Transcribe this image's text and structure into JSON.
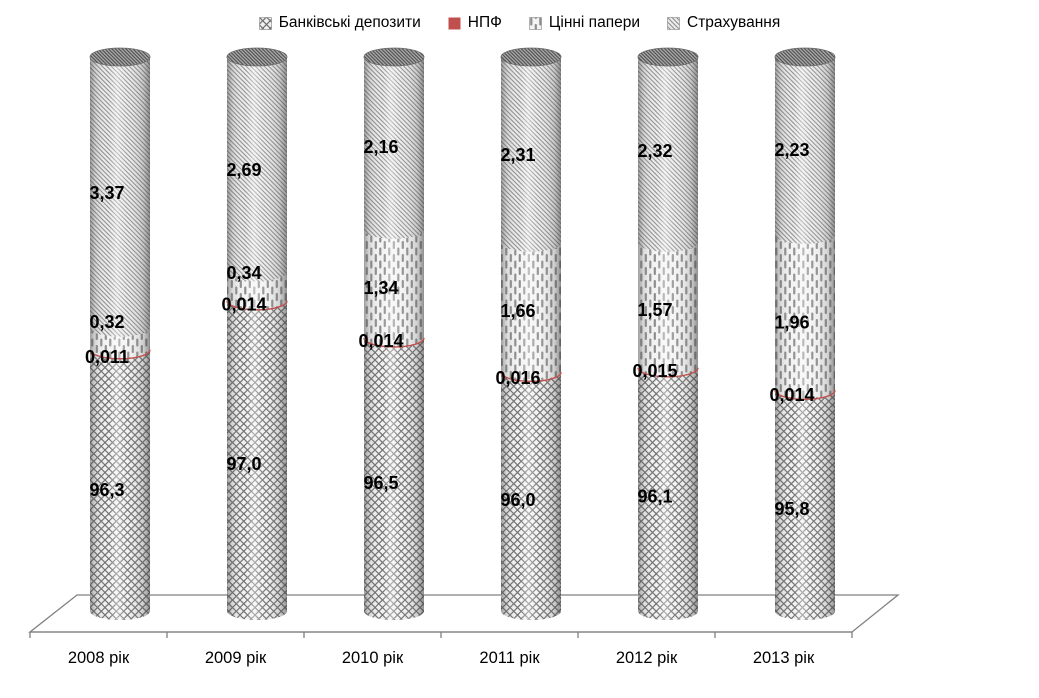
{
  "chart": {
    "colors": {
      "npf_red": "#C0504D",
      "axis_gray": "#808080",
      "label_black": "#000000"
    },
    "legend": [
      {
        "pattern": "crosshatch"
      },
      {
        "pattern": "solid-red"
      },
      {
        "pattern": "vertical-dashes"
      },
      {
        "pattern": "diagonal-lines"
      }
    ]
  },
  "chart_data": {
    "type": "bar",
    "subtype": "3d-stacked-cylinder-100pct",
    "title": "",
    "xlabel": "",
    "ylabel": "",
    "legend_position": "top",
    "grid": false,
    "y_axis_visible": false,
    "categories": [
      "2008 рік",
      "2009 рік",
      "2010 рік",
      "2011 рік",
      "2012 рік",
      "2013 рік"
    ],
    "series": [
      {
        "name": "Банківські депозити",
        "values": [
          96.3,
          97.0,
          96.5,
          96.0,
          96.1,
          95.8
        ],
        "labels": [
          "96,3",
          "97,0",
          "96,5",
          "96,0",
          "96,1",
          "95,8"
        ]
      },
      {
        "name": "НПФ",
        "values": [
          0.011,
          0.014,
          0.014,
          0.016,
          0.015,
          0.014
        ],
        "labels": [
          "0,011",
          "0,014",
          "0,014",
          "0,016",
          "0,015",
          "0,014"
        ]
      },
      {
        "name": "Цінні папери",
        "values": [
          0.32,
          0.34,
          1.34,
          1.66,
          1.57,
          1.96
        ],
        "labels": [
          "0,32",
          "0,34",
          "1,34",
          "1,66",
          "1,57",
          "1,96"
        ]
      },
      {
        "name": "Страхування",
        "values": [
          3.37,
          2.69,
          2.16,
          2.31,
          2.32,
          2.23
        ],
        "labels": [
          "3,37",
          "2,69",
          "2,16",
          "2,31",
          "2,32",
          "2,23"
        ]
      }
    ],
    "layout_hints": {
      "note": "non-linear visual scale; fractions of cylinder body height (0=top,1=bottom)",
      "seg_boundaries": [
        [
          0.481,
          0.52
        ],
        [
          0.382,
          0.433
        ],
        [
          0.307,
          0.499
        ],
        [
          0.33,
          0.56
        ],
        [
          0.33,
          0.552
        ],
        [
          0.316,
          0.592
        ]
      ],
      "label_fracs": [
        {
          "insurance": 0.242,
          "securities": 0.471,
          "npf": 0.533,
          "deposits": 0.769
        },
        {
          "insurance": 0.201,
          "securities": 0.384,
          "npf": 0.44,
          "deposits": 0.723
        },
        {
          "insurance": 0.16,
          "securities": 0.41,
          "npf": 0.504,
          "deposits": 0.757
        },
        {
          "insurance": 0.174,
          "securities": 0.451,
          "npf": 0.57,
          "deposits": 0.787
        },
        {
          "insurance": 0.167,
          "securities": 0.449,
          "npf": 0.558,
          "deposits": 0.781
        },
        {
          "insurance": 0.165,
          "securities": 0.472,
          "npf": 0.6,
          "deposits": 0.803
        }
      ]
    }
  }
}
